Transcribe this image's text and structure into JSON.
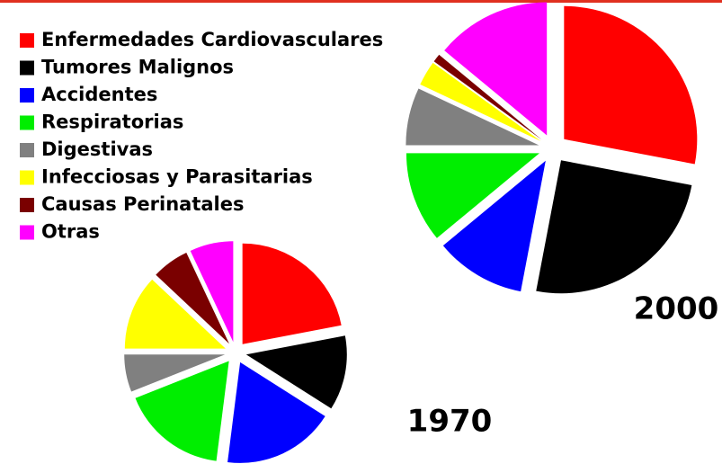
{
  "legend": {
    "categories": [
      "Enfermedades Cardiovasculares",
      "Tumores Malignos",
      "Accidentes",
      "Respiratorias",
      "Digestivas",
      "Infecciosas y Parasitarias",
      "Causas Perinatales",
      " Otras"
    ],
    "colors": [
      "#ff0000",
      "#000000",
      "#0000ff",
      "#00ee00",
      "#808080",
      "#ffff00",
      "#7a0000",
      "#ff00ff"
    ]
  },
  "chart_data": [
    {
      "type": "pie",
      "title": "2000",
      "values": [
        28,
        25,
        11,
        11,
        7,
        3,
        1,
        14
      ]
    },
    {
      "type": "pie",
      "title": "1970",
      "values": [
        22,
        12,
        18,
        17,
        6,
        12,
        6,
        7
      ]
    }
  ]
}
